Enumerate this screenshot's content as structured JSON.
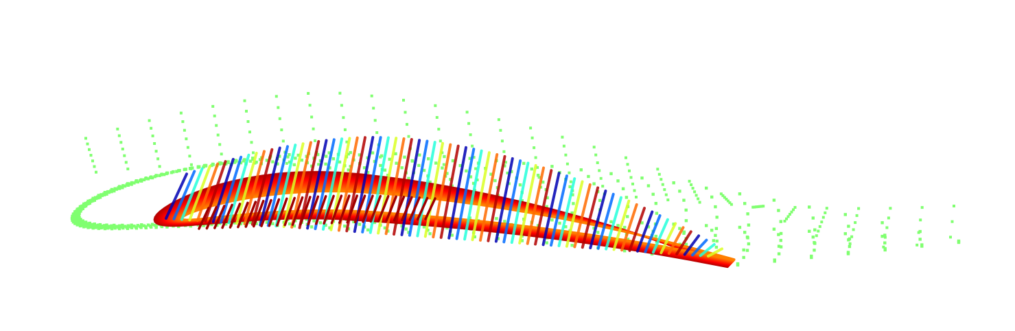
{
  "visualization": {
    "type": "scatter",
    "colormap": "jet",
    "background_color": "#ffffff",
    "point_marker": "square",
    "outer_point_color": "#80ff70",
    "inner_surface_colors": [
      "#000080",
      "#0000ff",
      "#00ffff",
      "#80ff80",
      "#ffff00",
      "#ff8000",
      "#ff0000",
      "#800000"
    ],
    "axes_visible": false,
    "grid": false,
    "legend": "none"
  }
}
